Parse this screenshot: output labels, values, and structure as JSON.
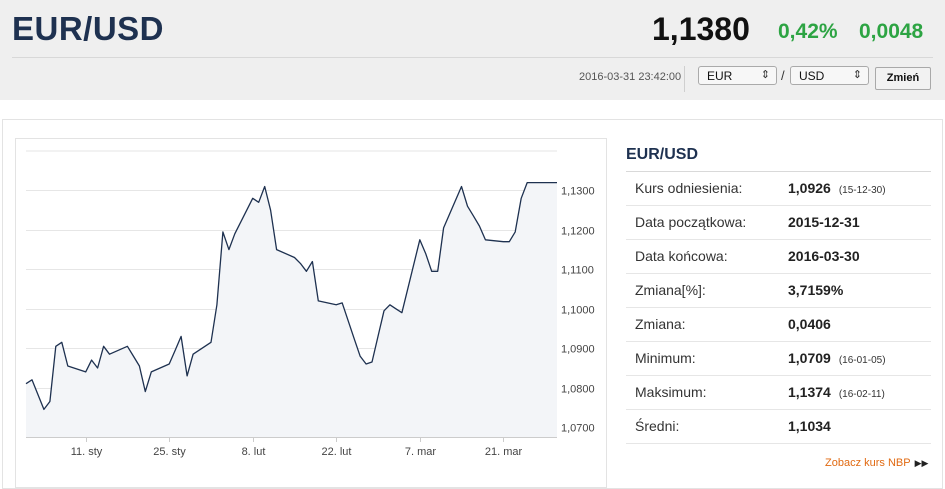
{
  "header": {
    "pair": "EUR/USD",
    "rate": "1,1380",
    "change_pct": "0,42%",
    "change_abs": "0,0048",
    "timestamp": "2016-03-31 23:42:00",
    "from_currency": "EUR",
    "to_currency": "USD",
    "separator": "/",
    "change_button": "Zmień",
    "positive_color": "#2da443"
  },
  "stats": {
    "title": "EUR/USD",
    "rows": [
      {
        "label": "Kurs odniesienia:",
        "value": "1,0926",
        "date": "(15-12-30)"
      },
      {
        "label": "Data początkowa:",
        "value": "2015-12-31",
        "date": ""
      },
      {
        "label": "Data końcowa:",
        "value": "2016-03-30",
        "date": ""
      },
      {
        "label": "Zmiana[%]:",
        "value": "3,7159%",
        "date": ""
      },
      {
        "label": "Zmiana:",
        "value": "0,0406",
        "date": ""
      },
      {
        "label": "Minimum:",
        "value": "1,0709",
        "date": "(16-01-05)"
      },
      {
        "label": "Maksimum:",
        "value": "1,1374",
        "date": "(16-02-11)"
      },
      {
        "label": "Średni:",
        "value": "1,1034",
        "date": ""
      }
    ],
    "nbp_link": "Zobacz kurs NBP",
    "nbp_arrow": "▶▶"
  },
  "chart_data": {
    "type": "area",
    "x_tick_labels": [
      "11. sty",
      "25. sty",
      "8. lut",
      "22. lut",
      "7. mar",
      "21. mar"
    ],
    "x_tick_days": [
      11,
      25,
      39,
      53,
      67,
      81
    ],
    "y_tick_labels": [
      "1,0700",
      "1,0800",
      "1,0900",
      "1,1000",
      "1,1100",
      "1,1200",
      "1,1300"
    ],
    "y_ticks": [
      1.07,
      1.08,
      1.09,
      1.1,
      1.11,
      1.12,
      1.13
    ],
    "ylim": [
      1.0675,
      1.14
    ],
    "grid": true,
    "line_color": "#1e3150",
    "fill_color": "#f3f5f8",
    "x_days": [
      1,
      2,
      4,
      5,
      6,
      7,
      8,
      11,
      12,
      13,
      14,
      15,
      18,
      19,
      20,
      21,
      22,
      25,
      26,
      27,
      28,
      29,
      32,
      33,
      34,
      35,
      36,
      39,
      40,
      41,
      42,
      43,
      46,
      47,
      48,
      49,
      50,
      53,
      54,
      56,
      57,
      58,
      59,
      60,
      61,
      62,
      63,
      64,
      67,
      68,
      69,
      70,
      71,
      74,
      75,
      76,
      77,
      78,
      81,
      82,
      83,
      84,
      85,
      86,
      87,
      88,
      89,
      90
    ],
    "values": [
      1.081,
      1.082,
      1.0745,
      1.0765,
      1.0905,
      1.0915,
      1.0855,
      1.084,
      1.087,
      1.085,
      1.0905,
      1.0885,
      1.0905,
      1.088,
      1.0855,
      1.079,
      1.084,
      1.086,
      1.0895,
      1.093,
      1.083,
      1.0885,
      1.0915,
      1.101,
      1.1195,
      1.115,
      1.119,
      1.128,
      1.127,
      1.131,
      1.125,
      1.115,
      1.113,
      1.1115,
      1.1095,
      1.112,
      1.102,
      1.101,
      1.1015,
      1.0925,
      1.088,
      1.086,
      1.0865,
      1.093,
      1.0995,
      1.101,
      1.1,
      1.099,
      1.1175,
      1.114,
      1.1095,
      1.1095,
      1.1205,
      1.131,
      1.126,
      1.1235,
      1.121,
      1.1175,
      1.117,
      1.117,
      1.1195,
      1.128,
      1.132,
      1.132,
      1.132,
      1.132,
      1.132,
      1.132
    ]
  }
}
